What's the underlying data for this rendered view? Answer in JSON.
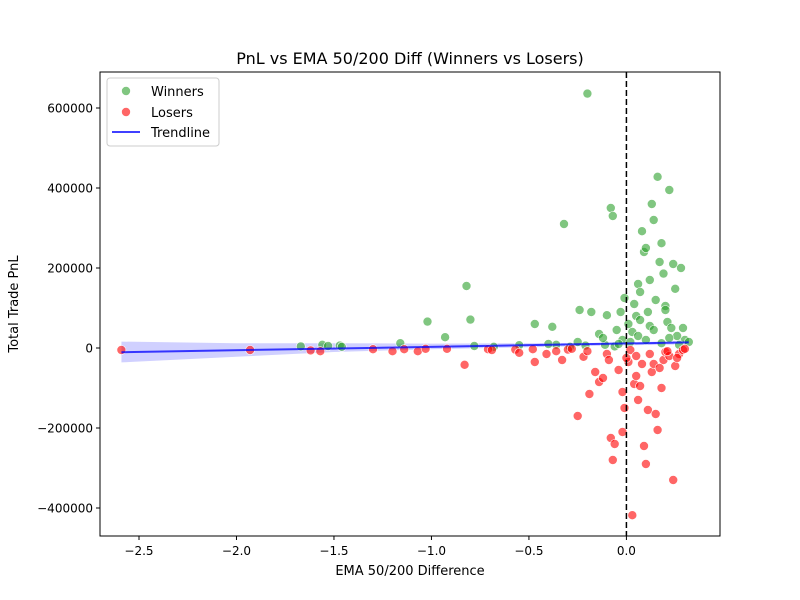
{
  "chart_data": {
    "type": "scatter",
    "title": "PnL vs EMA 50/200 Diff (Winners vs Losers)",
    "xlabel": "EMA 50/200 Difference",
    "ylabel": "Total Trade PnL",
    "xlim": [
      -2.7,
      0.48
    ],
    "ylim": [
      -470000,
      690000
    ],
    "xticks": [
      -2.5,
      -2.0,
      -1.5,
      -1.0,
      -0.5,
      0.0
    ],
    "xtick_labels": [
      "−2.5",
      "−2.0",
      "−1.5",
      "−1.0",
      "−0.5",
      "0.0"
    ],
    "yticks": [
      -400000,
      -200000,
      0,
      200000,
      400000,
      600000
    ],
    "ytick_labels": [
      "−400000",
      "−200000",
      "0",
      "200000",
      "400000",
      "600000"
    ],
    "grid": false,
    "legend_position": "upper-left",
    "vline": {
      "x": 0,
      "style": "dashed",
      "color": "#000000"
    },
    "colors": {
      "winners": "#2ca02c",
      "losers": "#ff0000",
      "trend": "#0000ff",
      "band": "#b0b0ff"
    },
    "series": [
      {
        "name": "Winners",
        "points": [
          [
            -1.67,
            4000
          ],
          [
            -1.56,
            8000
          ],
          [
            -1.53,
            5000
          ],
          [
            -1.47,
            6000
          ],
          [
            -1.46,
            3000
          ],
          [
            -1.16,
            12000
          ],
          [
            -1.02,
            66000
          ],
          [
            -0.93,
            27000
          ],
          [
            -0.82,
            155000
          ],
          [
            -0.8,
            71000
          ],
          [
            -0.78,
            5000
          ],
          [
            -0.68,
            3000
          ],
          [
            -0.55,
            7000
          ],
          [
            -0.47,
            60000
          ],
          [
            -0.38,
            53000
          ],
          [
            -0.36,
            8000
          ],
          [
            -0.32,
            310000
          ],
          [
            -0.29,
            3000
          ],
          [
            -0.24,
            95000
          ],
          [
            -0.21,
            6000
          ],
          [
            -0.2,
            636000
          ],
          [
            -0.18,
            90000
          ],
          [
            -0.14,
            35000
          ],
          [
            -0.11,
            8000
          ],
          [
            -0.1,
            82000
          ],
          [
            -0.08,
            350000
          ],
          [
            -0.07,
            330000
          ],
          [
            -0.06,
            4000
          ],
          [
            -0.05,
            45000
          ],
          [
            -0.03,
            90000
          ],
          [
            -0.02,
            20000
          ],
          [
            -0.01,
            125000
          ],
          [
            0.01,
            60000
          ],
          [
            0.02,
            15000
          ],
          [
            0.03,
            40000
          ],
          [
            0.04,
            110000
          ],
          [
            0.05,
            80000
          ],
          [
            0.06,
            160000
          ],
          [
            0.07,
            70000
          ],
          [
            0.08,
            292000
          ],
          [
            0.09,
            240000
          ],
          [
            0.1,
            250000
          ],
          [
            0.11,
            90000
          ],
          [
            0.12,
            55000
          ],
          [
            0.13,
            360000
          ],
          [
            0.14,
            320000
          ],
          [
            0.15,
            120000
          ],
          [
            0.16,
            428000
          ],
          [
            0.17,
            215000
          ],
          [
            0.18,
            262000
          ],
          [
            0.19,
            186000
          ],
          [
            0.2,
            105000
          ],
          [
            0.21,
            65000
          ],
          [
            0.22,
            395000
          ],
          [
            0.23,
            50000
          ],
          [
            0.24,
            210000
          ],
          [
            0.25,
            148000
          ],
          [
            0.26,
            30000
          ],
          [
            0.28,
            200000
          ],
          [
            0.29,
            50000
          ],
          [
            0.3,
            20000
          ],
          [
            0.32,
            15000
          ],
          [
            0.06,
            30000
          ],
          [
            0.1,
            20000
          ],
          [
            0.14,
            45000
          ],
          [
            0.18,
            12000
          ],
          [
            -0.12,
            25000
          ],
          [
            -0.25,
            15000
          ],
          [
            -0.4,
            10000
          ],
          [
            0.2,
            95000
          ],
          [
            0.07,
            140000
          ],
          [
            0.12,
            170000
          ],
          [
            -0.04,
            10000
          ],
          [
            0.22,
            25000
          ],
          [
            0.27,
            8000
          ]
        ]
      },
      {
        "name": "Losers",
        "points": [
          [
            -2.59,
            -5000
          ],
          [
            -1.93,
            -5000
          ],
          [
            -1.62,
            -6000
          ],
          [
            -1.57,
            -8000
          ],
          [
            -1.3,
            -3000
          ],
          [
            -1.2,
            -8000
          ],
          [
            -1.14,
            -3000
          ],
          [
            -1.07,
            -8000
          ],
          [
            -1.03,
            -2000
          ],
          [
            -0.92,
            -2000
          ],
          [
            -0.83,
            -42000
          ],
          [
            -0.71,
            -3000
          ],
          [
            -0.69,
            -5000
          ],
          [
            -0.57,
            -4000
          ],
          [
            -0.55,
            -12000
          ],
          [
            -0.48,
            -3000
          ],
          [
            -0.47,
            -35000
          ],
          [
            -0.41,
            -15000
          ],
          [
            -0.36,
            -8000
          ],
          [
            -0.33,
            -30000
          ],
          [
            -0.3,
            -4000
          ],
          [
            -0.28,
            -2000
          ],
          [
            -0.25,
            -170000
          ],
          [
            -0.22,
            -22000
          ],
          [
            -0.19,
            -115000
          ],
          [
            -0.16,
            -60000
          ],
          [
            -0.14,
            -85000
          ],
          [
            -0.12,
            -75000
          ],
          [
            -0.1,
            -15000
          ],
          [
            -0.08,
            -225000
          ],
          [
            -0.07,
            -280000
          ],
          [
            -0.06,
            -240000
          ],
          [
            -0.04,
            -55000
          ],
          [
            -0.02,
            -210000
          ],
          [
            -0.01,
            -150000
          ],
          [
            0.01,
            -35000
          ],
          [
            0.02,
            -5000
          ],
          [
            0.03,
            -418000
          ],
          [
            0.04,
            -90000
          ],
          [
            0.05,
            -20000
          ],
          [
            0.06,
            -130000
          ],
          [
            0.07,
            -95000
          ],
          [
            0.08,
            -40000
          ],
          [
            0.09,
            -245000
          ],
          [
            0.1,
            -290000
          ],
          [
            0.11,
            -155000
          ],
          [
            0.13,
            -60000
          ],
          [
            0.14,
            -40000
          ],
          [
            0.15,
            -165000
          ],
          [
            0.16,
            -205000
          ],
          [
            0.18,
            -100000
          ],
          [
            0.19,
            -30000
          ],
          [
            0.2,
            -10000
          ],
          [
            0.22,
            -20000
          ],
          [
            0.24,
            -330000
          ],
          [
            0.25,
            -45000
          ],
          [
            0.27,
            -15000
          ],
          [
            0.29,
            -5000
          ],
          [
            0.3,
            -2000
          ],
          [
            -0.02,
            -110000
          ],
          [
            0.05,
            -70000
          ],
          [
            0.12,
            -15000
          ],
          [
            -0.2,
            -8000
          ],
          [
            0.0,
            -25000
          ],
          [
            0.17,
            -50000
          ],
          [
            -0.09,
            -30000
          ],
          [
            0.21,
            -8000
          ],
          [
            0.26,
            -25000
          ]
        ]
      }
    ],
    "trendline": {
      "name": "Trendline",
      "x": [
        -2.59,
        0.32
      ],
      "y": [
        -10500,
        14000
      ],
      "band_x": [
        -2.59,
        -2.0,
        -1.5,
        -1.0,
        -0.5,
        0.0,
        0.32
      ],
      "band_lower": [
        -36000,
        -22000,
        -10000,
        -3000,
        2000,
        7000,
        9000
      ],
      "band_upper": [
        16000,
        12000,
        12000,
        11000,
        12000,
        13000,
        19000
      ]
    }
  }
}
